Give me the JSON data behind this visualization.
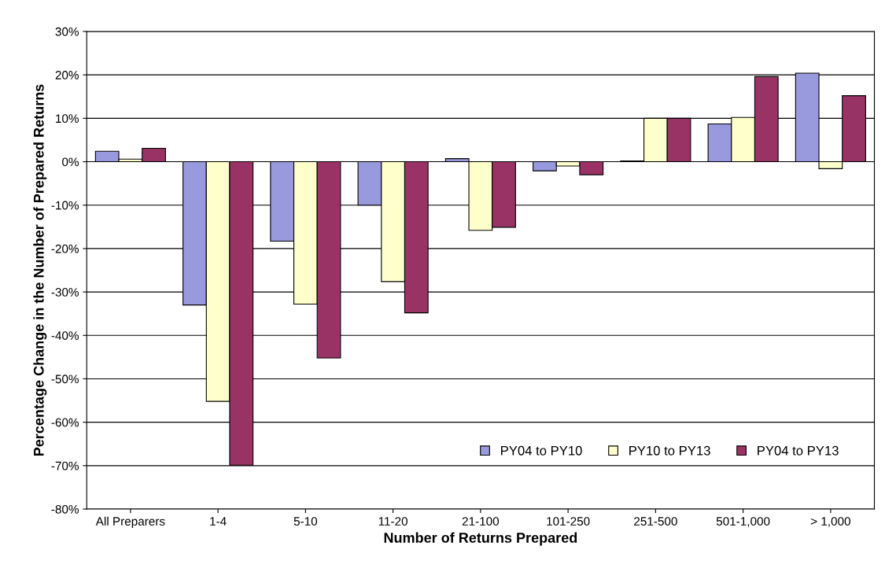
{
  "chart_data": {
    "type": "bar",
    "xlabel": "Number of Returns Prepared",
    "ylabel": "Percentage Change in the Number of Prepared Returns",
    "categories": [
      "All Preparers",
      "1-4",
      "5-10",
      "11-20",
      "21-100",
      "101-250",
      "251-500",
      "501-1,000",
      "> 1,000"
    ],
    "series": [
      {
        "name": "PY04 to PY10",
        "color": "#9999dd",
        "values": [
          2.4,
          -33.0,
          -18.3,
          -10.0,
          0.7,
          -2.1,
          0.2,
          8.7,
          20.4
        ]
      },
      {
        "name": "PY10 to PY13",
        "color": "#ffffcc",
        "values": [
          0.6,
          -55.2,
          -32.8,
          -27.6,
          -15.8,
          -1.0,
          10.0,
          10.2,
          -1.6
        ]
      },
      {
        "name": "PY04 to PY13",
        "color": "#993366",
        "values": [
          3.1,
          -69.9,
          -45.2,
          -34.8,
          -15.1,
          -3.0,
          10.0,
          19.6,
          15.2
        ]
      }
    ],
    "ylim": [
      -80,
      30
    ],
    "yticks": [
      {
        "value": -80,
        "label": "-80%"
      },
      {
        "value": -70,
        "label": "-70%"
      },
      {
        "value": -60,
        "label": "-60%"
      },
      {
        "value": -50,
        "label": "-50%"
      },
      {
        "value": -40,
        "label": "-40%"
      },
      {
        "value": -30,
        "label": "-30%"
      },
      {
        "value": -20,
        "label": "-20%"
      },
      {
        "value": -10,
        "label": "-10%"
      },
      {
        "value": 0,
        "label": "0%"
      },
      {
        "value": 10,
        "label": "10%"
      },
      {
        "value": 20,
        "label": "20%"
      },
      {
        "value": 30,
        "label": "30%"
      }
    ],
    "grid": "y",
    "legend": "bottom right"
  }
}
